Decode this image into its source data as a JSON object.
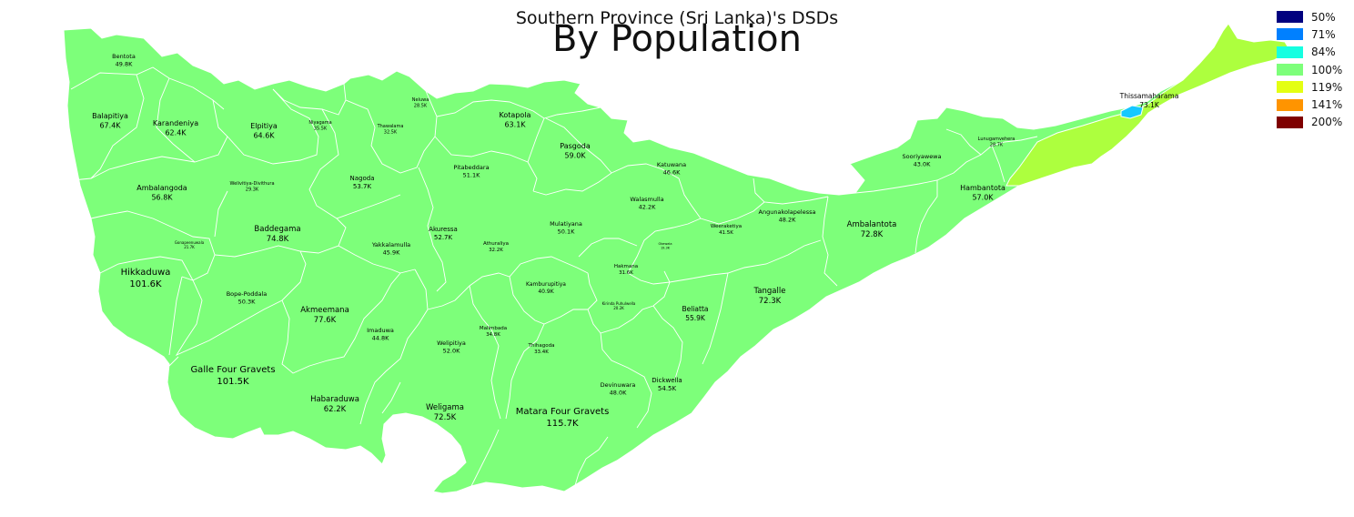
{
  "title": "Southern Province (Sri Lanka)'s DSDs",
  "subtitle": "By Population",
  "legend": [
    {
      "label": "50%",
      "color": "#00007f"
    },
    {
      "label": "71%",
      "color": "#0080ff"
    },
    {
      "label": "84%",
      "color": "#15ffe1"
    },
    {
      "label": "100%",
      "color": "#7dff7a"
    },
    {
      "label": "119%",
      "color": "#e4ff13"
    },
    {
      "label": "141%",
      "color": "#ff9400"
    },
    {
      "label": "200%",
      "color": "#7f0000"
    }
  ],
  "colors": {
    "default_fill": "#7dff7a",
    "tissa_fill": "#adff3e",
    "tissa_lagoon": "#15c8ff",
    "border": "#ffffff"
  },
  "dsds": [
    {
      "name": "Bentota",
      "population": "49.8K"
    },
    {
      "name": "Balapitiya",
      "population": "67.4K"
    },
    {
      "name": "Karandeniya",
      "population": "62.4K"
    },
    {
      "name": "Elpitiya",
      "population": "64.6K"
    },
    {
      "name": "Niyagama",
      "population": "35.5K"
    },
    {
      "name": "Thawalama",
      "population": "32.5K"
    },
    {
      "name": "Neluwa",
      "population": "28.5K"
    },
    {
      "name": "Kotapola",
      "population": "63.1K"
    },
    {
      "name": "Pasgoda",
      "population": "59.0K"
    },
    {
      "name": "Pitabeddara",
      "population": "51.1K"
    },
    {
      "name": "Nagoda",
      "population": "53.7K"
    },
    {
      "name": "Ambalangoda",
      "population": "56.8K"
    },
    {
      "name": "Welivitiya-Divithura",
      "population": "29.3K"
    },
    {
      "name": "Baddegama",
      "population": "74.8K"
    },
    {
      "name": "Gonapeenuwala",
      "population": "21.7K"
    },
    {
      "name": "Yakkalamulla",
      "population": "45.9K"
    },
    {
      "name": "Akuressa",
      "population": "52.7K"
    },
    {
      "name": "Athuraliya",
      "population": "32.2K"
    },
    {
      "name": "Mulatiyana",
      "population": "50.1K"
    },
    {
      "name": "Katuwana",
      "population": "46.6K"
    },
    {
      "name": "Walasmulla",
      "population": "42.2K"
    },
    {
      "name": "Okewela",
      "population": "19.3K"
    },
    {
      "name": "Weeraketiya",
      "population": "41.5K"
    },
    {
      "name": "Angunakolapelessa",
      "population": "48.2K"
    },
    {
      "name": "Ambalantota",
      "population": "72.8K"
    },
    {
      "name": "Sooriyawewa",
      "population": "43.0K"
    },
    {
      "name": "Lunugamvehera",
      "population": "28.7K"
    },
    {
      "name": "Thissamaharama",
      "population": "73.1K"
    },
    {
      "name": "Hambantota",
      "population": "57.0K"
    },
    {
      "name": "Hikkaduwa",
      "population": "101.6K"
    },
    {
      "name": "Bope-Poddala",
      "population": "50.3K"
    },
    {
      "name": "Akmeemana",
      "population": "77.6K"
    },
    {
      "name": "Imaduwa",
      "population": "44.8K"
    },
    {
      "name": "Welipitiya",
      "population": "52.0K"
    },
    {
      "name": "Malimbada",
      "population": "34.8K"
    },
    {
      "name": "Kamburupitiya",
      "population": "40.9K"
    },
    {
      "name": "Hakmana",
      "population": "31.6K"
    },
    {
      "name": "Kirinda Puhulwella",
      "population": "20.2K"
    },
    {
      "name": "Beliatta",
      "population": "55.9K"
    },
    {
      "name": "Tangalle",
      "population": "72.3K"
    },
    {
      "name": "Thihagoda",
      "population": "33.4K"
    },
    {
      "name": "Galle Four Gravets",
      "population": "101.5K"
    },
    {
      "name": "Habaraduwa",
      "population": "62.2K"
    },
    {
      "name": "Weligama",
      "population": "72.5K"
    },
    {
      "name": "Matara Four Gravets",
      "population": "115.7K"
    },
    {
      "name": "Devinuwara",
      "population": "48.0K"
    },
    {
      "name": "Dickwella",
      "population": "54.5K"
    }
  ]
}
